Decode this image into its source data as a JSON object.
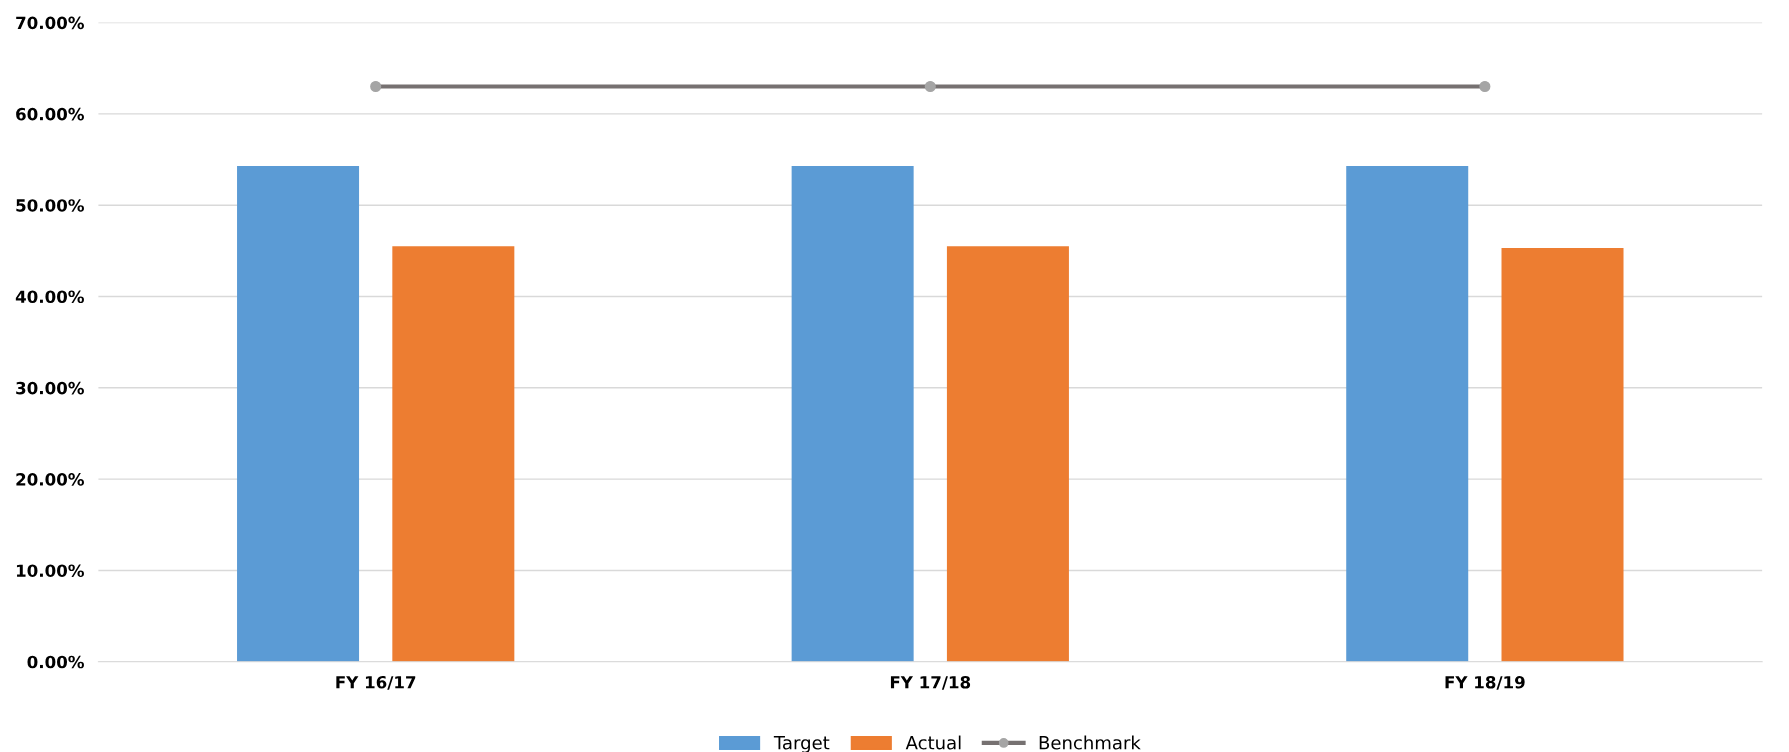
{
  "chart_data": {
    "type": "bar",
    "categories": [
      "FY 16/17",
      "FY 17/18",
      "FY 18/19"
    ],
    "series": [
      {
        "name": "Target",
        "color": "#5b9bd5",
        "values": [
          54.3,
          54.3,
          54.3
        ]
      },
      {
        "name": "Actual",
        "color": "#ed7d31",
        "values": [
          45.5,
          45.5,
          45.3
        ]
      },
      {
        "name": "Benchmark",
        "type": "line",
        "color": "#767171",
        "marker": "circle",
        "values": [
          63.0,
          63.0,
          63.0
        ]
      }
    ],
    "ylim": [
      0,
      70
    ],
    "yticks": [
      {
        "value": 0,
        "label": "0.00%"
      },
      {
        "value": 10,
        "label": "10.00%"
      },
      {
        "value": 20,
        "label": "20.00%"
      },
      {
        "value": 30,
        "label": "30.00%"
      },
      {
        "value": 40,
        "label": "40.00%"
      },
      {
        "value": 50,
        "label": "50.00%"
      },
      {
        "value": 60,
        "label": "60.00%"
      },
      {
        "value": 70,
        "label": "70.00%"
      }
    ],
    "grid": "y",
    "legend": "bottom"
  }
}
